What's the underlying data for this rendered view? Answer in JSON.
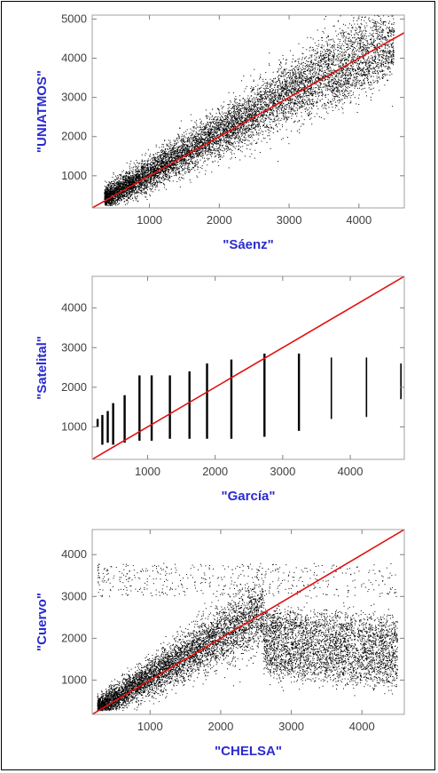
{
  "colors": {
    "points": "#000000",
    "fit_line": "#e01010",
    "axis_title": "#2b2bd0",
    "frame": "#a0a0a0"
  },
  "chart_data": [
    {
      "type": "scatter",
      "xlabel": "\"Sáenz\"",
      "ylabel": "\"UNIATMOS\"",
      "xlim": [
        180,
        4650
      ],
      "ylim": [
        180,
        5100
      ],
      "xticks": [
        1000,
        2000,
        3000,
        4000
      ],
      "yticks": [
        1000,
        2000,
        3000,
        4000,
        5000
      ],
      "xtick_labels": [
        "1000",
        "2000",
        "3000",
        "4000"
      ],
      "ytick_labels": [
        "1000",
        "2000",
        "3000",
        "4000",
        "5000"
      ],
      "reference_line": {
        "x": [
          180,
          4650
        ],
        "y": [
          180,
          4650
        ]
      },
      "pattern": "dense continuous cloud along y=x",
      "points_sample": [
        [
          350,
          420
        ],
        [
          600,
          700
        ],
        [
          800,
          900
        ],
        [
          1000,
          1150
        ],
        [
          1200,
          1350
        ],
        [
          1500,
          1650
        ],
        [
          1800,
          1900
        ],
        [
          2000,
          2150
        ],
        [
          2200,
          2350
        ],
        [
          2500,
          2600
        ],
        [
          2800,
          2900
        ],
        [
          3000,
          3100
        ],
        [
          3300,
          3500
        ],
        [
          3600,
          3800
        ],
        [
          3900,
          4000
        ],
        [
          4200,
          4300
        ],
        [
          4400,
          3900
        ],
        [
          2200,
          3200
        ],
        [
          1500,
          2500
        ],
        [
          3500,
          3000
        ]
      ]
    },
    {
      "type": "scatter",
      "xlabel": "\"García\"",
      "ylabel": "\"Satelital\"",
      "xlim": [
        180,
        4800
      ],
      "ylim": [
        180,
        4800
      ],
      "xticks": [
        1000,
        2000,
        3000,
        4000
      ],
      "yticks": [
        1000,
        2000,
        3000,
        4000
      ],
      "xtick_labels": [
        "1000",
        "2000",
        "3000",
        "4000"
      ],
      "ytick_labels": [
        "1000",
        "2000",
        "3000",
        "4000"
      ],
      "reference_line": {
        "x": [
          180,
          4800
        ],
        "y": [
          180,
          4800
        ]
      },
      "pattern": "discrete vertical columns",
      "columns": [
        {
          "x": 260,
          "ymin": 1000,
          "ymax": 1200
        },
        {
          "x": 330,
          "ymin": 550,
          "ymax": 1300
        },
        {
          "x": 410,
          "ymin": 600,
          "ymax": 1400
        },
        {
          "x": 490,
          "ymin": 550,
          "ymax": 1600
        },
        {
          "x": 660,
          "ymin": 600,
          "ymax": 1800
        },
        {
          "x": 880,
          "ymin": 650,
          "ymax": 2300
        },
        {
          "x": 1060,
          "ymin": 650,
          "ymax": 2300
        },
        {
          "x": 1330,
          "ymin": 700,
          "ymax": 2300
        },
        {
          "x": 1620,
          "ymin": 700,
          "ymax": 2400
        },
        {
          "x": 1880,
          "ymin": 700,
          "ymax": 2600
        },
        {
          "x": 2240,
          "ymin": 700,
          "ymax": 2700
        },
        {
          "x": 2730,
          "ymin": 750,
          "ymax": 2850
        },
        {
          "x": 3240,
          "ymin": 900,
          "ymax": 2850
        },
        {
          "x": 3720,
          "ymin": 1200,
          "ymax": 2750
        },
        {
          "x": 4240,
          "ymin": 1250,
          "ymax": 2750
        },
        {
          "x": 4750,
          "ymin": 1700,
          "ymax": 2600
        }
      ]
    },
    {
      "type": "scatter",
      "xlabel": "\"CHELSA\"",
      "ylabel": "\"Cuervo\"",
      "xlim": [
        180,
        4600
      ],
      "ylim": [
        180,
        4600
      ],
      "xticks": [
        1000,
        2000,
        3000,
        4000
      ],
      "yticks": [
        1000,
        2000,
        3000,
        4000
      ],
      "xtick_labels": [
        "1000",
        "2000",
        "3000",
        "4000"
      ],
      "ytick_labels": [
        "1000",
        "2000",
        "3000",
        "4000"
      ],
      "reference_line": {
        "x": [
          180,
          4600
        ],
        "y": [
          180,
          4600
        ]
      },
      "pattern": "dense cloud, flattening above ~2700 on y",
      "points_sample": [
        [
          300,
          350
        ],
        [
          500,
          550
        ],
        [
          700,
          800
        ],
        [
          900,
          1000
        ],
        [
          1100,
          1200
        ],
        [
          1300,
          1400
        ],
        [
          1600,
          1700
        ],
        [
          1900,
          2000
        ],
        [
          2200,
          2300
        ],
        [
          2500,
          2500
        ],
        [
          2800,
          2600
        ],
        [
          3200,
          2500
        ],
        [
          3600,
          2400
        ],
        [
          4000,
          2000
        ],
        [
          4300,
          1500
        ],
        [
          2500,
          3800
        ],
        [
          2000,
          3000
        ],
        [
          3000,
          1700
        ],
        [
          2000,
          1200
        ],
        [
          4500,
          1000
        ]
      ]
    }
  ]
}
